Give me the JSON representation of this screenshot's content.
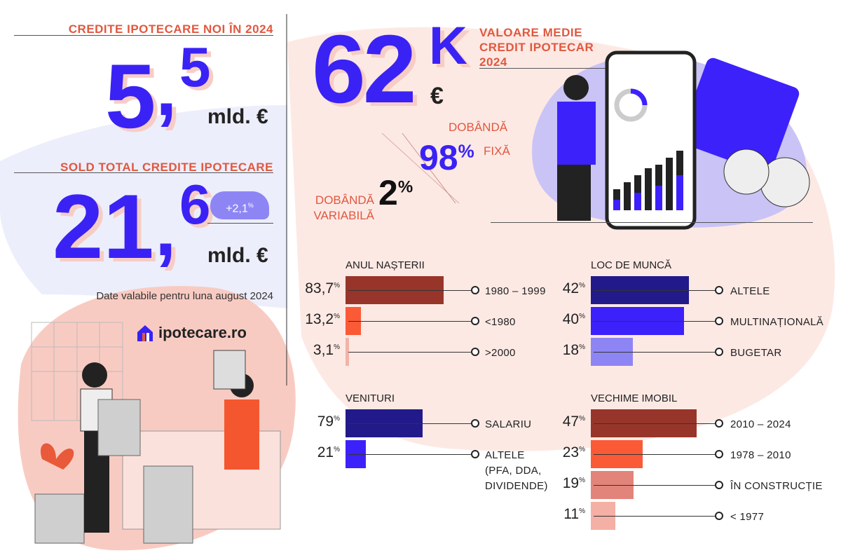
{
  "new_loans": {
    "title": "CREDITE IPOTECARE NOI ÎN 2024",
    "int": "5",
    "comma": ",",
    "dec": "5",
    "unit": "mld. €"
  },
  "total_balance": {
    "title": "SOLD TOTAL CREDITE IPOTECARE",
    "int": "21",
    "comma": ",",
    "dec": "6",
    "unit": "mld. €",
    "change": "+2,1",
    "change_unit": "%",
    "note": "Date valabile pentru luna august 2024"
  },
  "avg_loan": {
    "value": "62",
    "suffix": "K",
    "currency": "€",
    "title_lines": [
      "VALOARE MEDIE",
      "CREDIT IPOTECAR",
      "2024"
    ]
  },
  "interest": {
    "fixed_value": "98",
    "fixed_unit": "%",
    "fixed_label_1": "DOBÂNDĂ",
    "fixed_label_2": "FIXĂ",
    "variable_value": "2",
    "variable_unit": "%",
    "variable_label_1": "DOBÂNDĂ",
    "variable_label_2": "VARIABILĂ"
  },
  "brand": {
    "name": "ipotecare.ro"
  },
  "colors": {
    "accent_blue": "#3a22f5",
    "heading_orange": "#e0583f",
    "blob_pink": "#fde9e4",
    "blob_lavender": "#eceefb"
  },
  "chart_data": [
    {
      "type": "bar",
      "orientation": "horizontal",
      "title": "ANUL NAȘTERII",
      "categories": [
        "1980 – 1999",
        "<1980",
        ">2000"
      ],
      "values": [
        83.7,
        13.2,
        3.1
      ],
      "labels": [
        "83,7",
        "13,2",
        "3,1"
      ],
      "unit": "%",
      "colors": [
        "#98352a",
        "#fb5a36",
        "#f2b3a8"
      ]
    },
    {
      "type": "bar",
      "orientation": "horizontal",
      "title": "LOC DE MUNCĂ",
      "categories": [
        "ALTELE",
        "MULTINAȚIONALĂ",
        "BUGETAR"
      ],
      "values": [
        42,
        40,
        18
      ],
      "labels": [
        "42",
        "40",
        "18"
      ],
      "unit": "%",
      "colors": [
        "#221a8a",
        "#3d21fb",
        "#8e85f5"
      ]
    },
    {
      "type": "bar",
      "orientation": "horizontal",
      "title": "VENITURI",
      "categories": [
        "SALARIU",
        "ALTELE\n(PFA, DDA,\nDIVIDENDE)"
      ],
      "values": [
        79,
        21
      ],
      "labels": [
        "79",
        "21"
      ],
      "unit": "%",
      "colors": [
        "#221a8a",
        "#3d21fb"
      ]
    },
    {
      "type": "bar",
      "orientation": "horizontal",
      "title": "VECHIME IMOBIL",
      "categories": [
        "2010 – 2024",
        "1978 – 2010",
        "ÎN CONSTRUCȚIE",
        "< 1977"
      ],
      "values": [
        47,
        23,
        19,
        11
      ],
      "labels": [
        "47",
        "23",
        "19",
        "11"
      ],
      "unit": "%",
      "colors": [
        "#98352a",
        "#fb5a36",
        "#e2847a",
        "#f4b0a4"
      ]
    }
  ]
}
